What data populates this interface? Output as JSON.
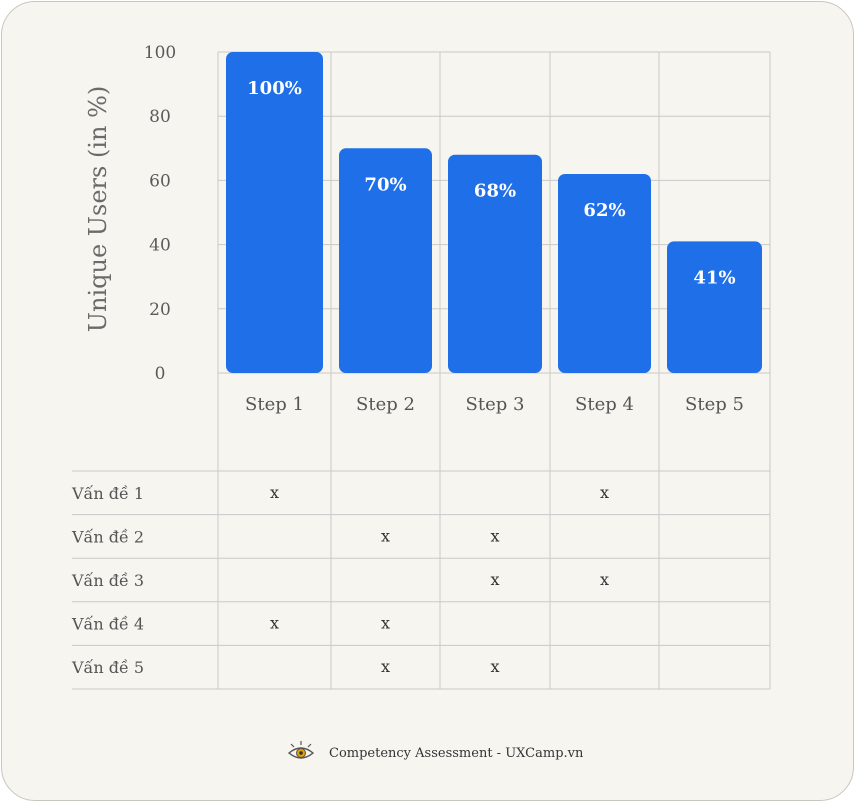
{
  "chart_data": {
    "type": "bar",
    "ylabel": "Unique Users (in %)",
    "ylim": [
      0,
      100
    ],
    "yticks": [
      0,
      20,
      40,
      60,
      80,
      100
    ],
    "categories": [
      "Step 1",
      "Step 2",
      "Step 3",
      "Step 4",
      "Step 5"
    ],
    "values": [
      100,
      70,
      68,
      62,
      41
    ],
    "value_labels": [
      "100%",
      "70%",
      "68%",
      "62%",
      "41%"
    ],
    "bar_color": "#1f6fe8",
    "grid": true
  },
  "issue_table": {
    "mark": "x",
    "rows": [
      {
        "label": "Vấn đề 1",
        "marks": [
          true,
          false,
          false,
          true,
          false
        ]
      },
      {
        "label": "Vấn đề 2",
        "marks": [
          false,
          true,
          true,
          false,
          false
        ]
      },
      {
        "label": "Vấn đề 3",
        "marks": [
          false,
          false,
          true,
          true,
          false
        ]
      },
      {
        "label": "Vấn đề 4",
        "marks": [
          true,
          true,
          false,
          false,
          false
        ]
      },
      {
        "label": "Vấn đề 5",
        "marks": [
          false,
          true,
          true,
          false,
          false
        ]
      }
    ]
  },
  "footer": {
    "text": "Competency Assessment - UXCamp.vn",
    "icon": "eye-icon"
  }
}
